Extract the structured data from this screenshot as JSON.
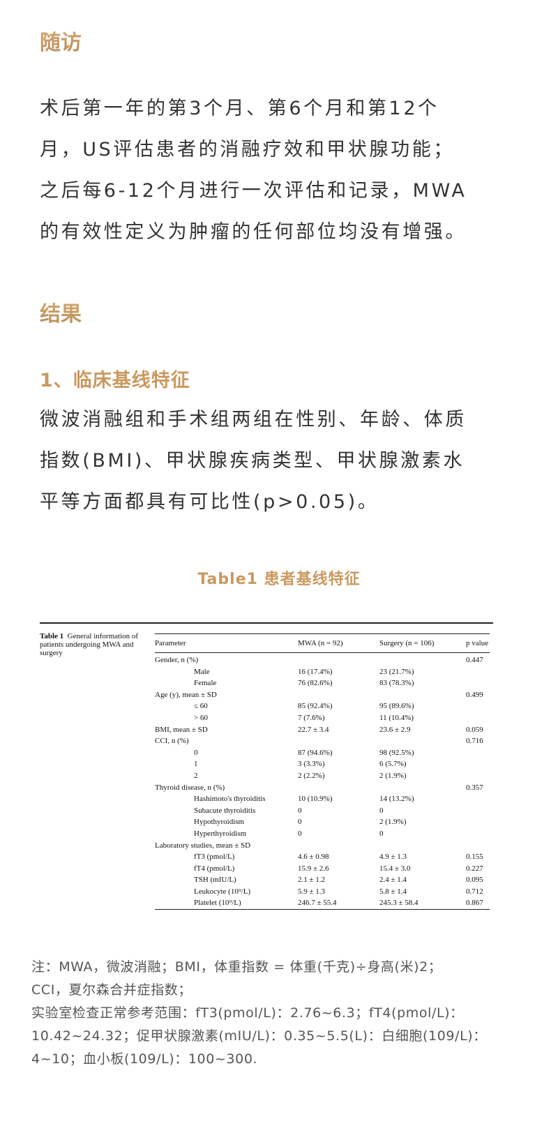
{
  "followup": {
    "heading": "随访",
    "lines": [
      "术后第一年的第3个月、第6个月和第12个",
      "月，US评估患者的消融疗效和甲状腺功能；",
      "之后每6-12个月进行一次评估和记录，MWA",
      "的有效性定义为肿瘤的任何部位均没有增强。"
    ]
  },
  "results": {
    "heading": "结果",
    "subheading": "1、临床基线特征",
    "lines": [
      "微波消融组和手术组两组在性别、年龄、体质",
      "指数(BMI)、甲状腺疾病类型、甲状腺激素水",
      "平等方面都具有可比性(p>0.05)。"
    ]
  },
  "table": {
    "caption": "Table1 患者基线特征",
    "inner_caption_bold": "Table 1",
    "inner_caption": "General information of patients undergoing MWA and surgery",
    "headers": [
      "Parameter",
      "MWA (n = 92)",
      "Surgery (n = 106)",
      "p value"
    ],
    "rows": [
      {
        "indent": false,
        "cells": [
          "Gender, n (%)",
          "",
          "",
          "0.447"
        ]
      },
      {
        "indent": true,
        "cells": [
          "Male",
          "16 (17.4%)",
          "23 (21.7%)",
          ""
        ]
      },
      {
        "indent": true,
        "cells": [
          "Female",
          "76 (82.6%)",
          "83 (78.3%)",
          ""
        ]
      },
      {
        "indent": false,
        "cells": [
          "Age (y), mean ± SD",
          "",
          "",
          "0.499"
        ]
      },
      {
        "indent": true,
        "cells": [
          "≤ 60",
          "85 (92.4%)",
          "95 (89.6%)",
          ""
        ]
      },
      {
        "indent": true,
        "cells": [
          "> 60",
          "7 (7.6%)",
          "11 (10.4%)",
          ""
        ]
      },
      {
        "indent": false,
        "cells": [
          "BMI, mean ± SD",
          "22.7 ± 3.4",
          "23.6 ± 2.9",
          "0.059"
        ]
      },
      {
        "indent": false,
        "cells": [
          "CCI, n (%)",
          "",
          "",
          "0.716"
        ]
      },
      {
        "indent": true,
        "cells": [
          "0",
          "87 (94.6%)",
          "98 (92.5%)",
          ""
        ]
      },
      {
        "indent": true,
        "cells": [
          "1",
          "3 (3.3%)",
          "6 (5.7%)",
          ""
        ]
      },
      {
        "indent": true,
        "cells": [
          "2",
          "2 (2.2%)",
          "2 (1.9%)",
          ""
        ]
      },
      {
        "indent": false,
        "cells": [
          "Thyroid disease, n (%)",
          "",
          "",
          "0.357"
        ]
      },
      {
        "indent": true,
        "cells": [
          "Hashimoto's thyroiditis",
          "10 (10.9%)",
          "14 (13.2%)",
          ""
        ]
      },
      {
        "indent": true,
        "cells": [
          "Subacute thyroiditis",
          "0",
          "0",
          ""
        ]
      },
      {
        "indent": true,
        "cells": [
          "Hypothyroidism",
          "0",
          "2 (1.9%)",
          ""
        ]
      },
      {
        "indent": true,
        "cells": [
          "Hyperthyroidism",
          "0",
          "0",
          ""
        ]
      },
      {
        "indent": false,
        "cells": [
          "Laboratory studies, mean ± SD",
          "",
          "",
          ""
        ]
      },
      {
        "indent": true,
        "cells": [
          "fT3 (pmol/L)",
          "4.6 ± 0.98",
          "4.9 ± 1.3",
          "0.155"
        ]
      },
      {
        "indent": true,
        "cells": [
          "fT4 (pmol/L)",
          "15.9 ± 2.6",
          "15.4 ± 3.0",
          "0.227"
        ]
      },
      {
        "indent": true,
        "cells": [
          "TSH (mIU/L)",
          "2.1 ± 1.2",
          "2.4 ± 1.4",
          "0.095"
        ]
      },
      {
        "indent": true,
        "cells": [
          "Leukocyte (10⁹/L)",
          "5.9 ± 1.3",
          "5.8 ± 1.4",
          "0.712"
        ]
      },
      {
        "indent": true,
        "cells": [
          "Platelet (10⁹/L)",
          "246.7 ± 55.4",
          "245.3 ± 58.4",
          "0.867"
        ]
      }
    ]
  },
  "notes": [
    "注：MWA，微波消融；BMI，体重指数 = 体重(千克)÷身高(米)2；",
    "CCI，夏尔森合并症指数；",
    "实验室检查正常参考范围：fT3(pmol/L)：2.76~6.3；fT4(pmol/L)：",
    "10.42~24.32；促甲状腺激素(mIU/L)：0.35~5.5(L)：白细胞(109/L)：",
    "4~10；血小板(109/L)：100~300."
  ],
  "colors": {
    "accent": "#c9995f",
    "text": "#333333",
    "note": "#555555"
  }
}
